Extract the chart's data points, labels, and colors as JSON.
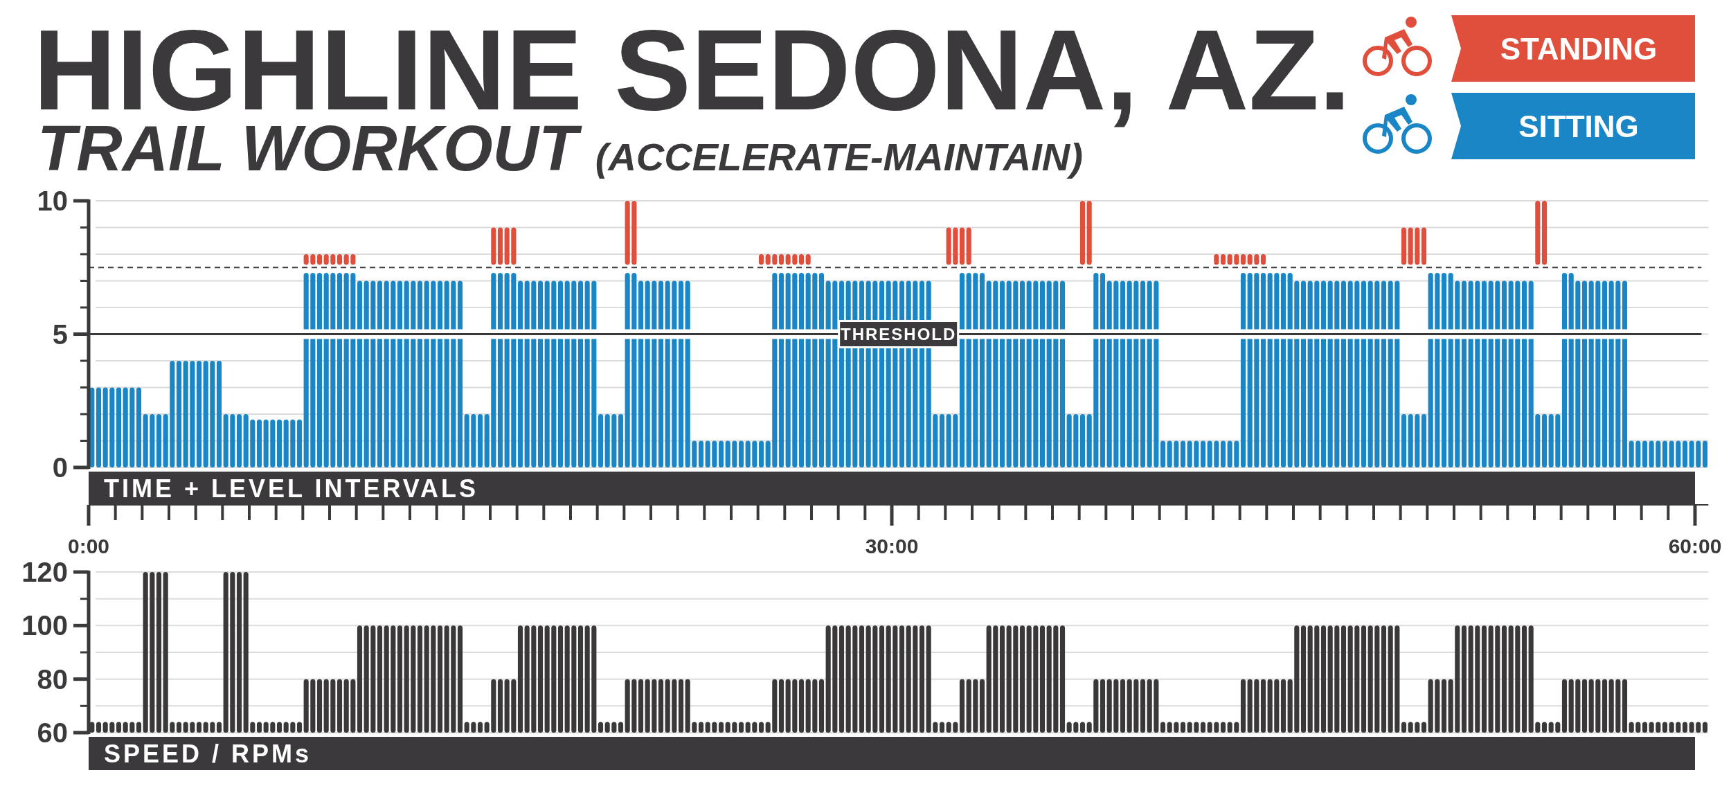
{
  "chart_data": [
    {
      "type": "bar",
      "title": "HIGHLINE SEDONA, AZ.",
      "subtitle": "TRAIL WORKOUT (ACCELERATE-MAINTAIN)",
      "xlabel": "TIME + LEVEL INTERVALS",
      "x": [
        0.125,
        0.375,
        0.625,
        0.875,
        1.125,
        1.375,
        1.625,
        1.875,
        2.125,
        2.375,
        2.625,
        2.875,
        3.125,
        3.375,
        3.625,
        3.875,
        4.125,
        4.375,
        4.625,
        4.875,
        5.125,
        5.375,
        5.625,
        5.875,
        6.125,
        6.375,
        6.625,
        6.875,
        7.125,
        7.375,
        7.625,
        7.875,
        8.125,
        8.375,
        8.625,
        8.875,
        9.125,
        9.375,
        9.625,
        9.875,
        10.125,
        10.375,
        10.625,
        10.875,
        11.125,
        11.375,
        11.625,
        11.875,
        12.125,
        12.375,
        12.625,
        12.875,
        13.125,
        13.375,
        13.625,
        13.875,
        14.125,
        14.375,
        14.625,
        14.875,
        15.125,
        15.375,
        15.625,
        15.875,
        16.125,
        16.375,
        16.625,
        16.875,
        17.125,
        17.375,
        17.625,
        17.875,
        18.125,
        18.375,
        18.625,
        18.875,
        19.125,
        19.375,
        19.625,
        19.875,
        20.125,
        20.375,
        20.625,
        20.875,
        21.125,
        21.375,
        21.625,
        21.875,
        22.125,
        22.375,
        22.625,
        22.875,
        23.125,
        23.375,
        23.625,
        23.875,
        24.125,
        24.375,
        24.625,
        24.875,
        25.125,
        25.375,
        25.625,
        25.875,
        26.125,
        26.375,
        26.625,
        26.875,
        27.125,
        27.375,
        27.625,
        27.875,
        28.125,
        28.375,
        28.625,
        28.875,
        29.125,
        29.375,
        29.625,
        29.875,
        30.125,
        30.375,
        30.625,
        30.875,
        31.125,
        31.375,
        31.625,
        31.875,
        32.125,
        32.375,
        32.625,
        32.875,
        33.125,
        33.375,
        33.625,
        33.875,
        34.125,
        34.375,
        34.625,
        34.875,
        35.125,
        35.375,
        35.625,
        35.875,
        36.125,
        36.375,
        36.625,
        36.875,
        37.125,
        37.375,
        37.625,
        37.875,
        38.125,
        38.375,
        38.625,
        38.875,
        39.125,
        39.375,
        39.625,
        39.875,
        40.125,
        40.375,
        40.625,
        40.875,
        41.125,
        41.375,
        41.625,
        41.875,
        42.125,
        42.375,
        42.625,
        42.875,
        43.125,
        43.375,
        43.625,
        43.875,
        44.125,
        44.375,
        44.625,
        44.875,
        45.125,
        45.375,
        45.625,
        45.875,
        46.125,
        46.375,
        46.625,
        46.875,
        47.125,
        47.375,
        47.625,
        47.875,
        48.125,
        48.375,
        48.625,
        48.875,
        49.125,
        49.375,
        49.625,
        49.875,
        50.125,
        50.375,
        50.625,
        50.875,
        51.125,
        51.375,
        51.625,
        51.875,
        52.125,
        52.375,
        52.625,
        52.875,
        53.125,
        53.375,
        53.625,
        53.875,
        54.125,
        54.375,
        54.625,
        54.875,
        55.125,
        55.375,
        55.625,
        55.875,
        56.125,
        56.375,
        56.625,
        56.875,
        57.125,
        57.375,
        57.625,
        57.875,
        58.125,
        58.375,
        58.625,
        58.875,
        59.125,
        59.375,
        59.625,
        59.875,
        60.125,
        60.375
      ],
      "xlim": [
        0,
        60.5
      ],
      "xticks": [
        {
          "value": 0,
          "label": "0:00"
        },
        {
          "value": 1,
          "label": null
        },
        {
          "value": 2,
          "label": null
        },
        {
          "value": 3,
          "label": null
        },
        {
          "value": 4,
          "label": null
        },
        {
          "value": 5,
          "label": null
        },
        {
          "value": 6,
          "label": null
        },
        {
          "value": 7,
          "label": null
        },
        {
          "value": 8,
          "label": null
        },
        {
          "value": 9,
          "label": null
        },
        {
          "value": 10,
          "label": null
        },
        {
          "value": 11,
          "label": null
        },
        {
          "value": 12,
          "label": null
        },
        {
          "value": 13,
          "label": null
        },
        {
          "value": 14,
          "label": null
        },
        {
          "value": 15,
          "label": null
        },
        {
          "value": 16,
          "label": null
        },
        {
          "value": 17,
          "label": null
        },
        {
          "value": 18,
          "label": null
        },
        {
          "value": 19,
          "label": null
        },
        {
          "value": 20,
          "label": null
        },
        {
          "value": 21,
          "label": null
        },
        {
          "value": 22,
          "label": null
        },
        {
          "value": 23,
          "label": null
        },
        {
          "value": 24,
          "label": null
        },
        {
          "value": 25,
          "label": null
        },
        {
          "value": 26,
          "label": null
        },
        {
          "value": 27,
          "label": null
        },
        {
          "value": 28,
          "label": null
        },
        {
          "value": 29,
          "label": null
        },
        {
          "value": 30,
          "label": "30:00"
        },
        {
          "value": 31,
          "label": null
        },
        {
          "value": 32,
          "label": null
        },
        {
          "value": 33,
          "label": null
        },
        {
          "value": 34,
          "label": null
        },
        {
          "value": 35,
          "label": null
        },
        {
          "value": 36,
          "label": null
        },
        {
          "value": 37,
          "label": null
        },
        {
          "value": 38,
          "label": null
        },
        {
          "value": 39,
          "label": null
        },
        {
          "value": 40,
          "label": null
        },
        {
          "value": 41,
          "label": null
        },
        {
          "value": 42,
          "label": null
        },
        {
          "value": 43,
          "label": null
        },
        {
          "value": 44,
          "label": null
        },
        {
          "value": 45,
          "label": null
        },
        {
          "value": 46,
          "label": null
        },
        {
          "value": 47,
          "label": null
        },
        {
          "value": 48,
          "label": null
        },
        {
          "value": 49,
          "label": null
        },
        {
          "value": 50,
          "label": null
        },
        {
          "value": 51,
          "label": null
        },
        {
          "value": 52,
          "label": null
        },
        {
          "value": 53,
          "label": null
        },
        {
          "value": 54,
          "label": null
        },
        {
          "value": 55,
          "label": null
        },
        {
          "value": 56,
          "label": null
        },
        {
          "value": 57,
          "label": null
        },
        {
          "value": 58,
          "label": null
        },
        {
          "value": 59,
          "label": null
        },
        {
          "value": 60,
          "label": "60:00"
        }
      ],
      "ylim": [
        0,
        10
      ],
      "yticks": [
        0,
        {
          "value": 1,
          "label": null
        },
        {
          "value": 2,
          "label": null
        },
        {
          "value": 3,
          "label": null
        },
        {
          "value": 4,
          "label": null
        },
        5,
        {
          "value": 6,
          "label": null
        },
        {
          "value": 7,
          "label": null
        },
        {
          "value": 8,
          "label": null
        },
        {
          "value": 9,
          "label": null
        },
        10
      ],
      "grid": "y",
      "legend": "top right",
      "ref_lines": [
        {
          "axis": "y",
          "value": 5,
          "label": "THRESHOLD",
          "color": "#3b393b",
          "line_style": "solid"
        },
        {
          "axis": "y",
          "value": 7.5,
          "color": "#3b393b",
          "line_style": "dashed"
        }
      ],
      "series": [
        {
          "name": "STANDING",
          "color": "#e04e3c",
          "values": [
            null,
            null,
            null,
            null,
            null,
            null,
            null,
            null,
            null,
            null,
            null,
            null,
            null,
            null,
            null,
            null,
            null,
            null,
            null,
            null,
            null,
            null,
            null,
            null,
            null,
            null,
            null,
            null,
            null,
            null,
            null,
            null,
            0.4,
            0.4,
            0.4,
            0.4,
            0.4,
            0.4,
            0.4,
            0.4,
            null,
            null,
            null,
            null,
            null,
            null,
            null,
            null,
            null,
            null,
            null,
            null,
            null,
            null,
            null,
            null,
            null,
            null,
            null,
            null,
            1.4,
            1.4,
            1.4,
            1.4,
            null,
            null,
            null,
            null,
            null,
            null,
            null,
            null,
            null,
            null,
            null,
            null,
            null,
            null,
            null,
            null,
            2.4,
            2.4,
            null,
            null,
            null,
            null,
            null,
            null,
            null,
            null,
            null,
            null,
            null,
            null,
            null,
            null,
            null,
            null,
            null,
            null,
            0.4,
            0.4,
            0.4,
            0.4,
            0.4,
            0.4,
            0.4,
            0.4,
            null,
            null,
            null,
            null,
            null,
            null,
            null,
            null,
            null,
            null,
            null,
            null,
            null,
            null,
            null,
            null,
            null,
            null,
            null,
            null,
            1.4,
            1.4,
            1.4,
            1.4,
            null,
            null,
            null,
            null,
            null,
            null,
            null,
            null,
            null,
            null,
            null,
            null,
            null,
            null,
            null,
            null,
            2.4,
            2.4,
            null,
            null,
            null,
            null,
            null,
            null,
            null,
            null,
            null,
            null,
            null,
            null,
            null,
            null,
            null,
            null,
            null,
            null,
            0.4,
            0.4,
            0.4,
            0.4,
            0.4,
            0.4,
            0.4,
            0.4,
            null,
            null,
            null,
            null,
            null,
            null,
            null,
            null,
            null,
            null,
            null,
            null,
            null,
            null,
            null,
            null,
            null,
            null,
            null,
            null,
            1.4,
            1.4,
            1.4,
            1.4,
            null,
            null,
            null,
            null,
            null,
            null,
            null,
            null,
            null,
            null,
            null,
            null,
            null,
            null,
            null,
            null,
            2.4,
            2.4,
            null,
            null,
            null,
            null,
            null,
            null,
            null,
            null,
            null,
            null,
            null,
            null,
            null,
            null,
            null,
            null,
            null,
            null,
            null,
            null,
            null,
            null,
            null,
            null
          ],
          "base": [
            null,
            null,
            null,
            null,
            null,
            null,
            null,
            null,
            null,
            null,
            null,
            null,
            null,
            null,
            null,
            null,
            null,
            null,
            null,
            null,
            null,
            null,
            null,
            null,
            null,
            null,
            null,
            null,
            null,
            null,
            null,
            null,
            7.6,
            7.6,
            7.6,
            7.6,
            7.6,
            7.6,
            7.6,
            7.6,
            null,
            null,
            null,
            null,
            null,
            null,
            null,
            null,
            null,
            null,
            null,
            null,
            null,
            null,
            null,
            null,
            null,
            null,
            null,
            null,
            7.6,
            7.6,
            7.6,
            7.6,
            null,
            null,
            null,
            null,
            null,
            null,
            null,
            null,
            null,
            null,
            null,
            null,
            null,
            null,
            null,
            null,
            7.6,
            7.6,
            null,
            null,
            null,
            null,
            null,
            null,
            null,
            null,
            null,
            null,
            null,
            null,
            null,
            null,
            null,
            null,
            null,
            null,
            7.6,
            7.6,
            7.6,
            7.6,
            7.6,
            7.6,
            7.6,
            7.6,
            null,
            null,
            null,
            null,
            null,
            null,
            null,
            null,
            null,
            null,
            null,
            null,
            null,
            null,
            null,
            null,
            null,
            null,
            null,
            null,
            7.6,
            7.6,
            7.6,
            7.6,
            null,
            null,
            null,
            null,
            null,
            null,
            null,
            null,
            null,
            null,
            null,
            null,
            null,
            null,
            null,
            null,
            7.6,
            7.6,
            null,
            null,
            null,
            null,
            null,
            null,
            null,
            null,
            null,
            null,
            null,
            null,
            null,
            null,
            null,
            null,
            null,
            null,
            7.6,
            7.6,
            7.6,
            7.6,
            7.6,
            7.6,
            7.6,
            7.6,
            null,
            null,
            null,
            null,
            null,
            null,
            null,
            null,
            null,
            null,
            null,
            null,
            null,
            null,
            null,
            null,
            null,
            null,
            null,
            null,
            7.6,
            7.6,
            7.6,
            7.6,
            null,
            null,
            null,
            null,
            null,
            null,
            null,
            null,
            null,
            null,
            null,
            null,
            null,
            null,
            null,
            null,
            7.6,
            7.6,
            null,
            null,
            null,
            null,
            null,
            null,
            null,
            null,
            null,
            null,
            null,
            null,
            null,
            null,
            null,
            null,
            null,
            null,
            null,
            null,
            null,
            null,
            null,
            null
          ]
        },
        {
          "name": "SITTING",
          "color": "#1b86c5",
          "values": [
            3,
            3,
            3,
            3,
            3,
            3,
            3,
            3,
            2,
            2,
            2,
            2,
            4,
            4,
            4,
            4,
            4,
            4,
            4,
            4,
            2,
            2,
            2,
            2,
            1.8,
            1.8,
            1.8,
            1.8,
            1.8,
            1.8,
            1.8,
            1.8,
            7.3,
            7.3,
            7.3,
            7.3,
            7.3,
            7.3,
            7.3,
            7.3,
            7,
            7,
            7,
            7,
            7,
            7,
            7,
            7,
            7,
            7,
            7,
            7,
            7,
            7,
            7,
            7,
            2,
            2,
            2,
            2,
            7.3,
            7.3,
            7.3,
            7.3,
            7,
            7,
            7,
            7,
            7,
            7,
            7,
            7,
            7,
            7,
            7,
            7,
            2,
            2,
            2,
            2,
            7.3,
            7.3,
            7,
            7,
            7,
            7,
            7,
            7,
            7,
            7,
            1,
            1,
            1,
            1,
            1,
            1,
            1,
            1,
            1,
            1,
            1,
            1,
            7.3,
            7.3,
            7.3,
            7.3,
            7.3,
            7.3,
            7.3,
            7.3,
            7,
            7,
            7,
            7,
            7,
            7,
            7,
            7,
            7,
            7,
            7,
            7,
            7,
            7,
            7,
            7,
            2,
            2,
            2,
            2,
            7.3,
            7.3,
            7.3,
            7.3,
            7,
            7,
            7,
            7,
            7,
            7,
            7,
            7,
            7,
            7,
            7,
            7,
            2,
            2,
            2,
            2,
            7.3,
            7.3,
            7,
            7,
            7,
            7,
            7,
            7,
            7,
            7,
            1,
            1,
            1,
            1,
            1,
            1,
            1,
            1,
            1,
            1,
            1,
            1,
            7.3,
            7.3,
            7.3,
            7.3,
            7.3,
            7.3,
            7.3,
            7.3,
            7,
            7,
            7,
            7,
            7,
            7,
            7,
            7,
            7,
            7,
            7,
            7,
            7,
            7,
            7,
            7,
            2,
            2,
            2,
            2,
            7.3,
            7.3,
            7.3,
            7.3,
            7,
            7,
            7,
            7,
            7,
            7,
            7,
            7,
            7,
            7,
            7,
            7,
            2,
            2,
            2,
            2,
            7.3,
            7.3,
            7,
            7,
            7,
            7,
            7,
            7,
            7,
            7,
            1,
            1,
            1,
            1,
            1,
            1,
            1,
            1,
            1,
            1,
            1,
            1
          ]
        }
      ]
    },
    {
      "type": "bar",
      "xlabel": "SPEED / RPMs",
      "tick_labels": "y",
      "x": [
        0.125,
        0.375,
        0.625,
        0.875,
        1.125,
        1.375,
        1.625,
        1.875,
        2.125,
        2.375,
        2.625,
        2.875,
        3.125,
        3.375,
        3.625,
        3.875,
        4.125,
        4.375,
        4.625,
        4.875,
        5.125,
        5.375,
        5.625,
        5.875,
        6.125,
        6.375,
        6.625,
        6.875,
        7.125,
        7.375,
        7.625,
        7.875,
        8.125,
        8.375,
        8.625,
        8.875,
        9.125,
        9.375,
        9.625,
        9.875,
        10.125,
        10.375,
        10.625,
        10.875,
        11.125,
        11.375,
        11.625,
        11.875,
        12.125,
        12.375,
        12.625,
        12.875,
        13.125,
        13.375,
        13.625,
        13.875,
        14.125,
        14.375,
        14.625,
        14.875,
        15.125,
        15.375,
        15.625,
        15.875,
        16.125,
        16.375,
        16.625,
        16.875,
        17.125,
        17.375,
        17.625,
        17.875,
        18.125,
        18.375,
        18.625,
        18.875,
        19.125,
        19.375,
        19.625,
        19.875,
        20.125,
        20.375,
        20.625,
        20.875,
        21.125,
        21.375,
        21.625,
        21.875,
        22.125,
        22.375,
        22.625,
        22.875,
        23.125,
        23.375,
        23.625,
        23.875,
        24.125,
        24.375,
        24.625,
        24.875,
        25.125,
        25.375,
        25.625,
        25.875,
        26.125,
        26.375,
        26.625,
        26.875,
        27.125,
        27.375,
        27.625,
        27.875,
        28.125,
        28.375,
        28.625,
        28.875,
        29.125,
        29.375,
        29.625,
        29.875,
        30.125,
        30.375,
        30.625,
        30.875,
        31.125,
        31.375,
        31.625,
        31.875,
        32.125,
        32.375,
        32.625,
        32.875,
        33.125,
        33.375,
        33.625,
        33.875,
        34.125,
        34.375,
        34.625,
        34.875,
        35.125,
        35.375,
        35.625,
        35.875,
        36.125,
        36.375,
        36.625,
        36.875,
        37.125,
        37.375,
        37.625,
        37.875,
        38.125,
        38.375,
        38.625,
        38.875,
        39.125,
        39.375,
        39.625,
        39.875,
        40.125,
        40.375,
        40.625,
        40.875,
        41.125,
        41.375,
        41.625,
        41.875,
        42.125,
        42.375,
        42.625,
        42.875,
        43.125,
        43.375,
        43.625,
        43.875,
        44.125,
        44.375,
        44.625,
        44.875,
        45.125,
        45.375,
        45.625,
        45.875,
        46.125,
        46.375,
        46.625,
        46.875,
        47.125,
        47.375,
        47.625,
        47.875,
        48.125,
        48.375,
        48.625,
        48.875,
        49.125,
        49.375,
        49.625,
        49.875,
        50.125,
        50.375,
        50.625,
        50.875,
        51.125,
        51.375,
        51.625,
        51.875,
        52.125,
        52.375,
        52.625,
        52.875,
        53.125,
        53.375,
        53.625,
        53.875,
        54.125,
        54.375,
        54.625,
        54.875,
        55.125,
        55.375,
        55.625,
        55.875,
        56.125,
        56.375,
        56.625,
        56.875,
        57.125,
        57.375,
        57.625,
        57.875,
        58.125,
        58.375,
        58.625,
        58.875,
        59.125,
        59.375,
        59.625,
        59.875,
        60.125,
        60.375
      ],
      "xlim": [
        0,
        60.5
      ],
      "ylim": [
        60,
        120
      ],
      "yticks": [
        60,
        {
          "value": 70,
          "label": null
        },
        80,
        {
          "value": 90,
          "label": null
        },
        100,
        {
          "value": 110,
          "label": null
        },
        120
      ],
      "grid": "y",
      "series": [
        {
          "color": "#3a3839",
          "values": [
            64,
            64,
            64,
            64,
            64,
            64,
            64,
            64,
            120,
            120,
            120,
            120,
            64,
            64,
            64,
            64,
            64,
            64,
            64,
            64,
            120,
            120,
            120,
            120,
            64,
            64,
            64,
            64,
            64,
            64,
            64,
            64,
            80,
            80,
            80,
            80,
            80,
            80,
            80,
            80,
            100,
            100,
            100,
            100,
            100,
            100,
            100,
            100,
            100,
            100,
            100,
            100,
            100,
            100,
            100,
            100,
            64,
            64,
            64,
            64,
            80,
            80,
            80,
            80,
            100,
            100,
            100,
            100,
            100,
            100,
            100,
            100,
            100,
            100,
            100,
            100,
            64,
            64,
            64,
            64,
            80,
            80,
            80,
            80,
            80,
            80,
            80,
            80,
            80,
            80,
            64,
            64,
            64,
            64,
            64,
            64,
            64,
            64,
            64,
            64,
            64,
            64,
            80,
            80,
            80,
            80,
            80,
            80,
            80,
            80,
            100,
            100,
            100,
            100,
            100,
            100,
            100,
            100,
            100,
            100,
            100,
            100,
            100,
            100,
            100,
            100,
            64,
            64,
            64,
            64,
            80,
            80,
            80,
            80,
            100,
            100,
            100,
            100,
            100,
            100,
            100,
            100,
            100,
            100,
            100,
            100,
            64,
            64,
            64,
            64,
            80,
            80,
            80,
            80,
            80,
            80,
            80,
            80,
            80,
            80,
            64,
            64,
            64,
            64,
            64,
            64,
            64,
            64,
            64,
            64,
            64,
            64,
            80,
            80,
            80,
            80,
            80,
            80,
            80,
            80,
            100,
            100,
            100,
            100,
            100,
            100,
            100,
            100,
            100,
            100,
            100,
            100,
            100,
            100,
            100,
            100,
            64,
            64,
            64,
            64,
            80,
            80,
            80,
            80,
            100,
            100,
            100,
            100,
            100,
            100,
            100,
            100,
            100,
            100,
            100,
            100,
            64,
            64,
            64,
            64,
            80,
            80,
            80,
            80,
            80,
            80,
            80,
            80,
            80,
            80,
            64,
            64,
            64,
            64,
            64,
            64,
            64,
            64,
            64,
            64,
            64,
            64
          ]
        }
      ]
    }
  ]
}
